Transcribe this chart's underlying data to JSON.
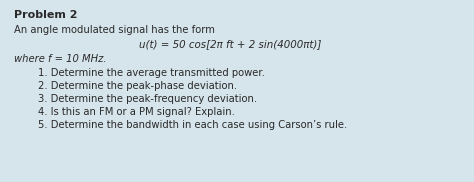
{
  "background_color": "#d6e4ec",
  "title": "Problem 2",
  "line1": "An angle modulated signal has the form",
  "equation": "u(t) = 50 cos[2π f⁣t + 2 sin(4000πt)]",
  "where_line": "where f⁣ = 10 MHz.",
  "items": [
    "1. Determine the average transmitted power.",
    "2. Determine the peak-phase deviation.",
    "3. Determine the peak-frequency deviation.",
    "4. Is this an FM or a PM signal? Explain.",
    "5. Determine the bandwidth in each case using Carson’s rule."
  ],
  "font_color": "#2a2a2a",
  "title_fontsize": 8.0,
  "body_fontsize": 7.2,
  "eq_fontsize": 7.4
}
